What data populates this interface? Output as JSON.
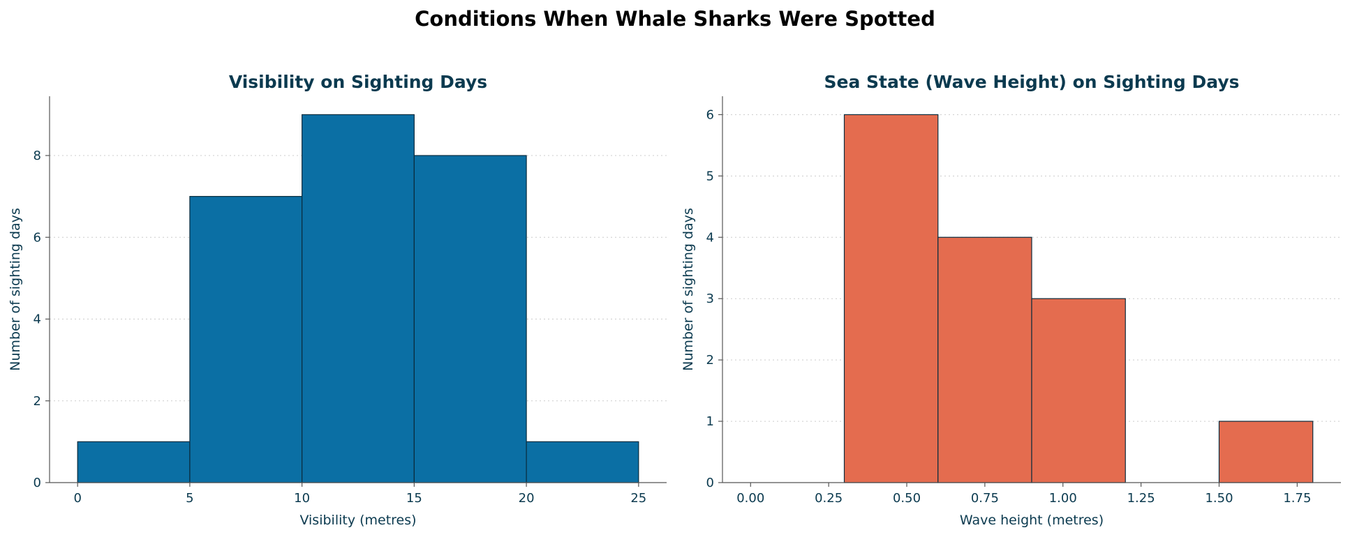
{
  "figure_title": "Conditions When Whale Sharks Were Spotted",
  "chart_data": [
    {
      "type": "bar",
      "histogram": true,
      "title": "Visibility on Sighting Days",
      "xlabel": "Visibility (metres)",
      "ylabel": "Number of sighting days",
      "bin_edges": [
        0,
        5,
        10,
        15,
        20,
        25
      ],
      "values": [
        1,
        7,
        9,
        8,
        1
      ],
      "xlim": [
        -1.25,
        26.25
      ],
      "ylim": [
        0,
        9.45
      ],
      "xticks": [
        0,
        5,
        10,
        15,
        20,
        25
      ],
      "xtick_labels": [
        "0",
        "5",
        "10",
        "15",
        "20",
        "25"
      ],
      "yticks": [
        0,
        2,
        4,
        6,
        8
      ],
      "ytick_labels": [
        "0",
        "2",
        "4",
        "6",
        "8"
      ],
      "grid": "y-dotted",
      "color": "#0b6fa4"
    },
    {
      "type": "bar",
      "histogram": true,
      "title": "Sea State (Wave Height) on Sighting Days",
      "xlabel": "Wave height (metres)",
      "ylabel": "Number of sighting days",
      "bin_edges": [
        0.3,
        0.6,
        0.9,
        1.2,
        1.5,
        1.8
      ],
      "values": [
        6,
        4,
        3,
        0,
        1
      ],
      "xlim": [
        -0.09,
        1.89
      ],
      "ylim": [
        0,
        6.3
      ],
      "xticks": [
        0,
        0.25,
        0.5,
        0.75,
        1.0,
        1.25,
        1.5,
        1.75
      ],
      "xtick_labels": [
        "0.00",
        "0.25",
        "0.50",
        "0.75",
        "1.00",
        "1.25",
        "1.50",
        "1.75"
      ],
      "yticks": [
        0,
        1,
        2,
        3,
        4,
        5,
        6
      ],
      "ytick_labels": [
        "0",
        "1",
        "2",
        "3",
        "4",
        "5",
        "6"
      ],
      "grid": "y-dotted",
      "color": "#e46c4f"
    }
  ]
}
